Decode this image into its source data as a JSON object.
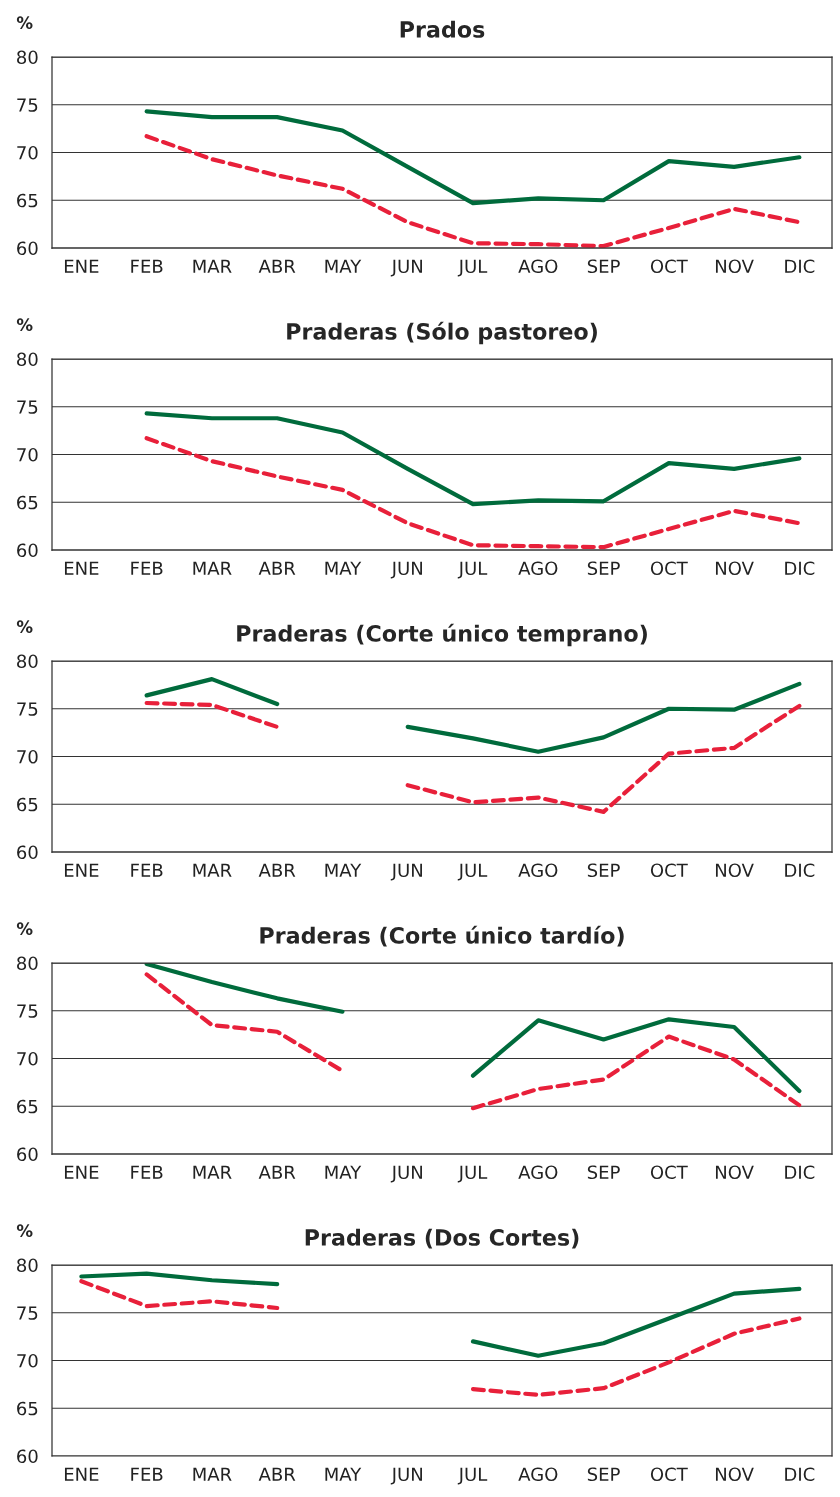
{
  "chart_data": [
    {
      "type": "line",
      "title": "Prados",
      "ylabel": "%",
      "categories": [
        "ENE",
        "FEB",
        "MAR",
        "ABR",
        "MAY",
        "JUN",
        "JUL",
        "AGO",
        "SEP",
        "OCT",
        "NOV",
        "DIC"
      ],
      "ylim": [
        60,
        80
      ],
      "yticks": [
        60,
        65,
        70,
        75,
        80
      ],
      "grid": "y",
      "series": [
        {
          "color": "#006b3c",
          "line_style": "solid",
          "values": [
            null,
            74.3,
            73.7,
            73.7,
            72.3,
            68.5,
            64.7,
            65.2,
            65.0,
            69.1,
            68.5,
            69.5
          ]
        },
        {
          "color": "#e8203a",
          "line_style": "dashed",
          "values": [
            null,
            71.7,
            69.3,
            67.6,
            66.2,
            62.7,
            60.5,
            60.4,
            60.2,
            62.1,
            64.1,
            62.7
          ]
        }
      ]
    },
    {
      "type": "line",
      "title": "Praderas (Sólo pastoreo)",
      "ylabel": "%",
      "categories": [
        "ENE",
        "FEB",
        "MAR",
        "ABR",
        "MAY",
        "JUN",
        "JUL",
        "AGO",
        "SEP",
        "OCT",
        "NOV",
        "DIC"
      ],
      "ylim": [
        60,
        80
      ],
      "yticks": [
        60,
        65,
        70,
        75,
        80
      ],
      "grid": "y",
      "series": [
        {
          "color": "#006b3c",
          "line_style": "solid",
          "values": [
            null,
            74.3,
            73.8,
            73.8,
            72.3,
            68.5,
            64.8,
            65.2,
            65.1,
            69.1,
            68.5,
            69.6
          ]
        },
        {
          "color": "#e8203a",
          "line_style": "dashed",
          "values": [
            null,
            71.7,
            69.3,
            67.7,
            66.3,
            62.8,
            60.5,
            60.4,
            60.3,
            62.2,
            64.1,
            62.8
          ]
        }
      ]
    },
    {
      "type": "line",
      "title": "Praderas (Corte único temprano)",
      "ylabel": "%",
      "categories": [
        "ENE",
        "FEB",
        "MAR",
        "ABR",
        "MAY",
        "JUN",
        "JUL",
        "AGO",
        "SEP",
        "OCT",
        "NOV",
        "DIC"
      ],
      "ylim": [
        60,
        80
      ],
      "yticks": [
        60,
        65,
        70,
        75,
        80
      ],
      "grid": "y",
      "series": [
        {
          "color": "#006b3c",
          "line_style": "solid",
          "values": [
            null,
            76.4,
            78.1,
            75.5,
            null,
            73.1,
            71.9,
            70.5,
            72.0,
            75.0,
            74.9,
            77.6
          ]
        },
        {
          "color": "#e8203a",
          "line_style": "dashed",
          "values": [
            null,
            75.6,
            75.4,
            73.1,
            null,
            67.0,
            65.2,
            65.7,
            64.2,
            70.3,
            70.9,
            75.3
          ]
        }
      ]
    },
    {
      "type": "line",
      "title": "Praderas (Corte único tardío)",
      "ylabel": "%",
      "categories": [
        "ENE",
        "FEB",
        "MAR",
        "ABR",
        "MAY",
        "JUN",
        "JUL",
        "AGO",
        "SEP",
        "OCT",
        "NOV",
        "DIC"
      ],
      "ylim": [
        60,
        80
      ],
      "yticks": [
        60,
        65,
        70,
        75,
        80
      ],
      "grid": "y",
      "series": [
        {
          "color": "#006b3c",
          "line_style": "solid",
          "values": [
            null,
            79.9,
            78.0,
            76.3,
            74.9,
            null,
            68.2,
            74.0,
            72.0,
            74.1,
            73.3,
            66.6
          ]
        },
        {
          "color": "#e8203a",
          "line_style": "dashed",
          "values": [
            null,
            78.8,
            73.5,
            72.8,
            68.7,
            null,
            64.8,
            66.8,
            67.8,
            72.3,
            69.9,
            65.1
          ]
        }
      ]
    },
    {
      "type": "line",
      "title": "Praderas (Dos Cortes)",
      "ylabel": "%",
      "categories": [
        "ENE",
        "FEB",
        "MAR",
        "ABR",
        "MAY",
        "JUN",
        "JUL",
        "AGO",
        "SEP",
        "OCT",
        "NOV",
        "DIC"
      ],
      "ylim": [
        60,
        80
      ],
      "yticks": [
        60,
        65,
        70,
        75,
        80
      ],
      "grid": "y",
      "series": [
        {
          "color": "#006b3c",
          "line_style": "solid",
          "values": [
            78.8,
            79.1,
            78.4,
            78.0,
            null,
            null,
            72.0,
            70.5,
            71.8,
            74.4,
            77.0,
            77.5
          ]
        },
        {
          "color": "#e8203a",
          "line_style": "dashed",
          "values": [
            78.3,
            75.7,
            76.2,
            75.5,
            null,
            null,
            67.0,
            66.4,
            67.1,
            69.8,
            72.8,
            74.4
          ]
        }
      ]
    }
  ]
}
